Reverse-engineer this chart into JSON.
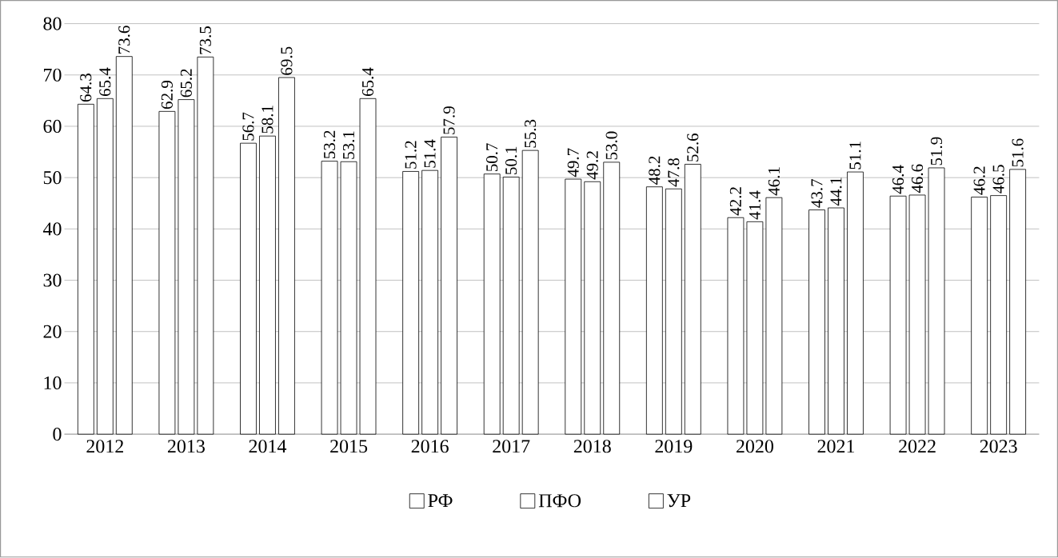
{
  "chart_data": {
    "type": "bar",
    "categories": [
      "2012",
      "2013",
      "2014",
      "2015",
      "2016",
      "2017",
      "2018",
      "2019",
      "2020",
      "2021",
      "2022",
      "2023"
    ],
    "series": [
      {
        "name": "РФ",
        "color": "#000000",
        "values": [
          64.3,
          62.9,
          56.7,
          53.2,
          51.2,
          50.7,
          49.7,
          48.2,
          42.2,
          43.7,
          46.4,
          46.2
        ],
        "value_labels": [
          "64.3",
          "62.9",
          "56.7",
          "53.2",
          "51.2",
          "50.7",
          "49.7",
          "48.2",
          "42.2",
          "43.7",
          "46.4",
          "46.2"
        ]
      },
      {
        "name": "ПФО",
        "color": "#000000",
        "values": [
          65.4,
          65.2,
          58.1,
          53.1,
          51.4,
          50.1,
          49.2,
          47.8,
          41.4,
          44.1,
          46.6,
          46.5
        ],
        "value_labels": [
          "65.4",
          "65.2",
          "58.1",
          "53.1",
          "51.4",
          "50.1",
          "49.2",
          "47.8",
          "41.4",
          "44.1",
          "46.6",
          "46.5"
        ]
      },
      {
        "name": "УР",
        "color": "#000000",
        "values": [
          73.6,
          73.5,
          69.5,
          65.4,
          57.9,
          55.3,
          53.0,
          52.6,
          46.1,
          51.1,
          51.9,
          51.6
        ],
        "value_labels": [
          "73.6",
          "73.5",
          "69.5",
          "65.4",
          "57.9",
          "55.3",
          "53.0",
          "52.6",
          "46.1",
          "51.1",
          "51.9",
          "51.6"
        ]
      }
    ],
    "ylim": [
      0,
      80
    ],
    "yticks": [
      0,
      10,
      20,
      30,
      40,
      50,
      60,
      70,
      80
    ],
    "grid": "y",
    "legend": "bottom"
  }
}
